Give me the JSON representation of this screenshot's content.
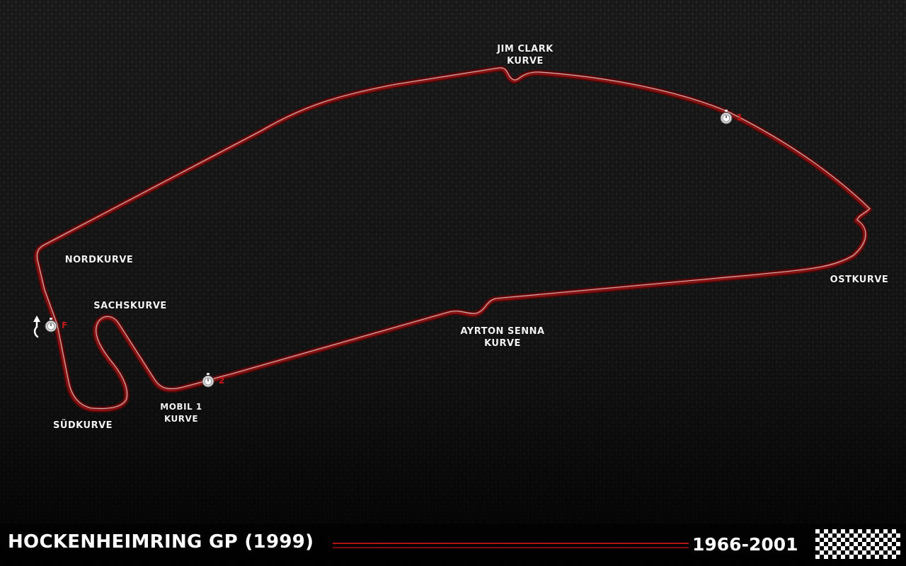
{
  "map": {
    "title": "HOCKENHEIMRING GP (1999)",
    "years": "1966-2001",
    "colors": {
      "track_outer": "#6e0f0f",
      "track_inner": "#2a0505",
      "track_highlight": "#d9d9d9",
      "accent_red": "#c11a1a",
      "background": "#111111",
      "text": "#ffffff"
    },
    "corners": [
      {
        "line1": "JIM CLARK",
        "line2": "KURVE"
      },
      {
        "line1": "OSTKURVE",
        "line2": ""
      },
      {
        "line1": "AYRTON SENNA",
        "line2": "KURVE"
      },
      {
        "line1": "MOBIL 1",
        "line2": "KURVE"
      },
      {
        "line1": "SÜDKURVE",
        "line2": ""
      },
      {
        "line1": "SACHSKURVE",
        "line2": ""
      },
      {
        "line1": "NORDKURVE",
        "line2": ""
      }
    ],
    "markers": [
      {
        "label": "1",
        "icon": "stopwatch-icon"
      },
      {
        "label": "2",
        "icon": "stopwatch-icon"
      },
      {
        "label": "F",
        "icon": "stopwatch-icon"
      }
    ],
    "direction_icon": "direction-arrow-icon",
    "flag_icon": "checkered-flag-icon"
  }
}
